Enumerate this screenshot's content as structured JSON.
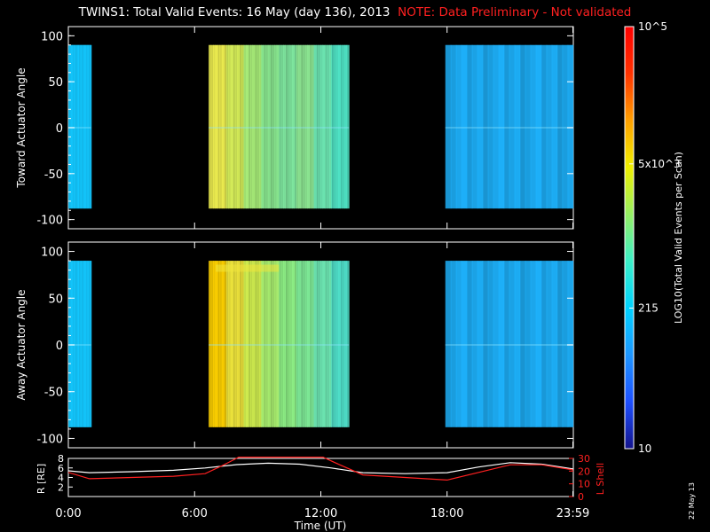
{
  "title": {
    "main": "TWINS1: Total Valid Events: 16 May (day 136), 2013",
    "note": "NOTE: Data Preliminary - Not validated"
  },
  "date_stamp": "22 May 13",
  "colorbar": {
    "label": "LOG10(Total Valid Events per Scan)",
    "scale": "log",
    "range": [
      10,
      100000
    ],
    "ticks": [
      {
        "value": 10,
        "label": "10"
      },
      {
        "value": 215,
        "label": "215"
      },
      {
        "value": 5000,
        "label": "5x10^3"
      },
      {
        "value": 100000,
        "label": "10^5"
      }
    ],
    "colors": [
      "#14148c",
      "#1e50ff",
      "#1e96ff",
      "#00d2ff",
      "#3cf0c8",
      "#96f064",
      "#f0f000",
      "#ffa000",
      "#ff3200",
      "#ff0000"
    ]
  },
  "chart_data": [
    {
      "type": "heatmap",
      "panel": "toward",
      "ylabel": "Toward Actuator Angle",
      "ylim": [
        -110,
        110
      ],
      "y_ticks": [
        100,
        50,
        0,
        -50,
        -100
      ],
      "x_range_hours": [
        0,
        24
      ],
      "data_range_deg": [
        -88,
        90
      ],
      "blocks": [
        {
          "start": "0:00",
          "end": "1:05",
          "level": "~200 events"
        },
        {
          "start": "6:40",
          "end": "13:20",
          "level": "~1000-3000 events (strong, vertical striations)"
        },
        {
          "start": "17:55",
          "end": "23:59",
          "level": "~150-250 events"
        }
      ]
    },
    {
      "type": "heatmap",
      "panel": "away",
      "ylabel": "Away Actuator Angle",
      "ylim": [
        -110,
        110
      ],
      "y_ticks": [
        100,
        50,
        0,
        -50,
        -100
      ],
      "x_range_hours": [
        0,
        24
      ],
      "data_range_deg": [
        -88,
        90
      ],
      "blocks": [
        {
          "start": "0:00",
          "end": "1:05",
          "level": "~250 events"
        },
        {
          "start": "6:40",
          "end": "13:20",
          "level": "~1500-5000 events (strong, vertical striations)"
        },
        {
          "start": "17:55",
          "end": "23:59",
          "level": "~150-250 events"
        }
      ]
    },
    {
      "type": "line",
      "panel": "orbit",
      "xlabel": "Time (UT)",
      "x_ticks": [
        "0:00",
        "6:00",
        "12:00",
        "18:00",
        "23:59"
      ],
      "x_tick_hours": [
        0,
        6,
        12,
        18,
        23.98
      ],
      "y_left_label": "R [RE]",
      "y_left_ticks": [
        2,
        4,
        6,
        8
      ],
      "y_left_range": [
        0,
        8
      ],
      "y_right_label": "L Shell",
      "y_right_ticks": [
        0,
        10,
        20,
        30
      ],
      "y_right_range": [
        0,
        30
      ],
      "series": [
        {
          "name": "R [RE]",
          "axis": "left",
          "color": "#ffffff",
          "x": [
            0,
            1,
            3,
            5,
            6.5,
            8,
            9.5,
            11,
            12.5,
            14,
            16,
            18,
            19.5,
            21,
            22.5,
            23.98
          ],
          "y": [
            5.4,
            5.0,
            5.2,
            5.5,
            6.0,
            6.7,
            7.0,
            6.8,
            6.0,
            5.0,
            4.8,
            5.0,
            6.2,
            7.1,
            6.8,
            5.8
          ]
        },
        {
          "name": "L Shell",
          "axis": "right",
          "color": "#ff2020",
          "x": [
            0,
            1,
            3,
            5,
            6.5,
            7.4,
            8.1,
            12.1,
            12.9,
            14,
            16,
            18,
            19.5,
            21,
            22.5,
            23.98
          ],
          "y": [
            19,
            14,
            15,
            16,
            18,
            25,
            31,
            31,
            25,
            17,
            15,
            13,
            19,
            25,
            25,
            21
          ]
        }
      ]
    }
  ]
}
